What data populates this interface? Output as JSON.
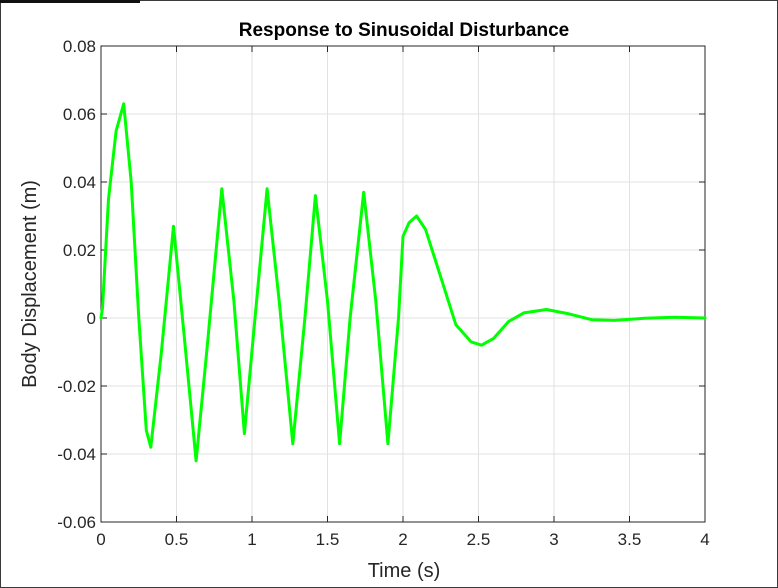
{
  "chart_data": {
    "type": "line",
    "title": "Response to Sinusoidal Disturbance",
    "xlabel": "Time (s)",
    "ylabel": "Body Displacement (m)",
    "xlim": [
      0,
      4
    ],
    "ylim": [
      -0.06,
      0.08
    ],
    "xticks": [
      0,
      0.5,
      1,
      1.5,
      2,
      2.5,
      3,
      3.5,
      4
    ],
    "xtick_labels": [
      "0",
      "0.5",
      "1",
      "1.5",
      "2",
      "2.5",
      "3",
      "3.5",
      "4"
    ],
    "yticks": [
      -0.06,
      -0.04,
      -0.02,
      0,
      0.02,
      0.04,
      0.06,
      0.08
    ],
    "ytick_labels": [
      "-0.06",
      "-0.04",
      "-0.02",
      "0",
      "0.02",
      "0.04",
      "0.06",
      "0.08"
    ],
    "grid": true,
    "series": [
      {
        "color": "#00ff00",
        "x": [
          0,
          0.01,
          0.05,
          0.1,
          0.15,
          0.2,
          0.25,
          0.3,
          0.33,
          0.4,
          0.48,
          0.55,
          0.63,
          0.7,
          0.8,
          0.88,
          0.95,
          1.02,
          1.1,
          1.18,
          1.27,
          1.35,
          1.42,
          1.5,
          1.58,
          1.65,
          1.74,
          1.82,
          1.9,
          1.97,
          2.0,
          2.04,
          2.09,
          2.15,
          2.25,
          2.35,
          2.45,
          2.52,
          2.6,
          2.7,
          2.8,
          2.95,
          3.1,
          3.25,
          3.4,
          3.6,
          3.8,
          4.0
        ],
        "y": [
          0,
          0.003,
          0.035,
          0.055,
          0.063,
          0.04,
          0.0,
          -0.033,
          -0.038,
          -0.01,
          0.027,
          -0.005,
          -0.042,
          -0.01,
          0.038,
          0.005,
          -0.034,
          0.0,
          0.038,
          0.005,
          -0.037,
          0.0,
          0.036,
          0.005,
          -0.037,
          0.0,
          0.037,
          0.005,
          -0.037,
          0.0,
          0.024,
          0.028,
          0.03,
          0.026,
          0.012,
          -0.002,
          -0.007,
          -0.008,
          -0.006,
          -0.001,
          0.0015,
          0.0025,
          0.0012,
          -0.0005,
          -0.0007,
          -0.0001,
          0.0002,
          0.0
        ]
      }
    ]
  }
}
